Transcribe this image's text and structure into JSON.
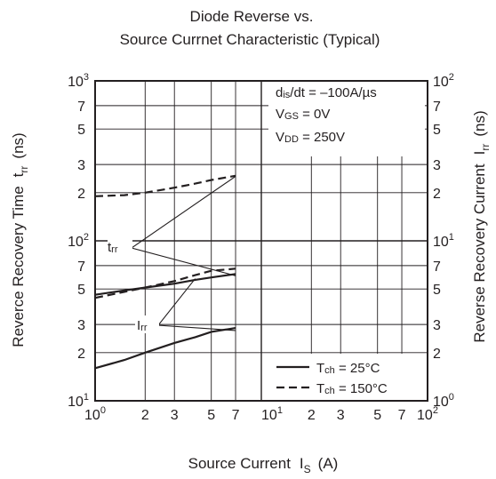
{
  "chart_data": {
    "type": "line",
    "title_line1": "Diode Reverse vs.",
    "title_line2": "Source Currnet Characteristic  (Typical)",
    "xlabel": "Source Current",
    "xlabel_symbol": "I",
    "xlabel_sub": "S",
    "xlabel_unit": "(A)",
    "ylabel_left": "Reverce Recovery Time",
    "ylabel_left_symbol": "t",
    "ylabel_left_sub": "rr",
    "ylabel_left_unit": "(ns)",
    "ylabel_right": "Reverse Recovery Current",
    "ylabel_right_symbol": "I",
    "ylabel_right_sub": "rr",
    "ylabel_right_unit": "(ns)",
    "xscale": "log",
    "yscale": "log",
    "xlim": [
      1,
      100
    ],
    "ylim_left": [
      10,
      1000
    ],
    "ylim_right": [
      1,
      100
    ],
    "grid": true,
    "x_ticks": [
      {
        "v": 1,
        "base": "10",
        "exp": "0"
      },
      {
        "v": 2,
        "base": "2",
        "exp": ""
      },
      {
        "v": 3,
        "base": "3",
        "exp": ""
      },
      {
        "v": 5,
        "base": "5",
        "exp": ""
      },
      {
        "v": 7,
        "base": "7",
        "exp": ""
      },
      {
        "v": 10,
        "base": "10",
        "exp": "1"
      },
      {
        "v": 20,
        "base": "2",
        "exp": ""
      },
      {
        "v": 30,
        "base": "3",
        "exp": ""
      },
      {
        "v": 50,
        "base": "5",
        "exp": ""
      },
      {
        "v": 70,
        "base": "7",
        "exp": ""
      },
      {
        "v": 100,
        "base": "10",
        "exp": "2"
      }
    ],
    "y_left_ticks": [
      {
        "v": 10,
        "base": "10",
        "exp": "1"
      },
      {
        "v": 20,
        "base": "2",
        "exp": ""
      },
      {
        "v": 30,
        "base": "3",
        "exp": ""
      },
      {
        "v": 50,
        "base": "5",
        "exp": ""
      },
      {
        "v": 70,
        "base": "7",
        "exp": ""
      },
      {
        "v": 100,
        "base": "10",
        "exp": "2"
      },
      {
        "v": 200,
        "base": "2",
        "exp": ""
      },
      {
        "v": 300,
        "base": "3",
        "exp": ""
      },
      {
        "v": 500,
        "base": "5",
        "exp": ""
      },
      {
        "v": 700,
        "base": "7",
        "exp": ""
      },
      {
        "v": 1000,
        "base": "10",
        "exp": "3"
      }
    ],
    "y_right_ticks": [
      {
        "v": 1,
        "base": "10",
        "exp": "0"
      },
      {
        "v": 2,
        "base": "2",
        "exp": ""
      },
      {
        "v": 3,
        "base": "3",
        "exp": ""
      },
      {
        "v": 5,
        "base": "5",
        "exp": ""
      },
      {
        "v": 7,
        "base": "7",
        "exp": ""
      },
      {
        "v": 10,
        "base": "10",
        "exp": "1"
      },
      {
        "v": 20,
        "base": "2",
        "exp": ""
      },
      {
        "v": 30,
        "base": "3",
        "exp": ""
      },
      {
        "v": 50,
        "base": "5",
        "exp": ""
      },
      {
        "v": 70,
        "base": "7",
        "exp": ""
      },
      {
        "v": 100,
        "base": "10",
        "exp": "2"
      }
    ],
    "conditions": [
      "dis/dt = –100A/µs",
      "VGS = 0V",
      "VDD = 250V"
    ],
    "series": [
      {
        "name": "trr",
        "tch": "150",
        "axis": "left",
        "style": "dashed",
        "x": [
          1,
          1.5,
          2,
          3,
          4,
          5,
          7
        ],
        "y": [
          190,
          193,
          200,
          215,
          228,
          240,
          255
        ]
      },
      {
        "name": "trr",
        "tch": "25",
        "axis": "left",
        "style": "solid",
        "x": [
          1,
          1.5,
          2,
          3,
          4,
          5,
          7
        ],
        "y": [
          46,
          49,
          51,
          54,
          57,
          59,
          62
        ]
      },
      {
        "name": "Irr",
        "tch": "150",
        "axis": "right",
        "style": "dashed",
        "x": [
          1,
          1.5,
          2,
          3,
          4,
          5,
          7
        ],
        "y": [
          4.4,
          4.8,
          5.1,
          5.6,
          6.1,
          6.5,
          6.7
        ]
      },
      {
        "name": "Irr",
        "tch": "25",
        "axis": "right",
        "style": "solid",
        "x": [
          1,
          1.5,
          2,
          3,
          4,
          5,
          7
        ],
        "y": [
          1.6,
          1.8,
          2.0,
          2.3,
          2.5,
          2.7,
          2.85
        ]
      }
    ],
    "annotations": [
      {
        "text": "trr",
        "tip": {
          "x": 7,
          "y": 253
        },
        "tip2": {
          "x": 7,
          "y": 60.5
        }
      },
      {
        "text": "Irr",
        "tip": {
          "x": 4,
          "y": 5.8
        },
        "tip2": {
          "x": 7,
          "y": 2.75
        }
      }
    ],
    "legend": {
      "position": "bottom-right",
      "items": [
        {
          "style": "solid",
          "label": "Tch = 25°C"
        },
        {
          "style": "dashed",
          "label": "Tch = 150°C"
        }
      ]
    }
  }
}
